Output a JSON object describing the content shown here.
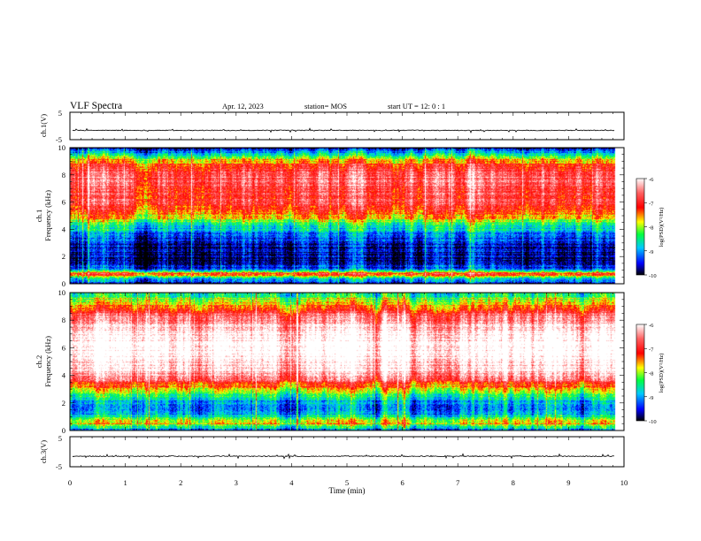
{
  "header": {
    "title": "VLF Spectra",
    "date": "Apr. 12, 2023",
    "station": "station= MOS",
    "start": "start  UT  =    12: 0   : 1"
  },
  "xaxis": {
    "label": "Time  (min)",
    "ticks": [
      "0",
      "1",
      "2",
      "3",
      "4",
      "5",
      "6",
      "7",
      "8",
      "9",
      "10"
    ]
  },
  "chart_data": [
    {
      "type": "line",
      "name_label": "ch.1(V)",
      "ylim": [
        -5,
        5
      ],
      "ytick_labels": [
        "5",
        "-5"
      ],
      "x_range": [
        0,
        9.83
      ],
      "baseline": -1.6,
      "title": "",
      "xlabel": "Time  (min)",
      "ylabel": "ch.1(V)"
    },
    {
      "type": "heatmap",
      "name_label": "ch.1",
      "ylabel": "Frequency  (kHz)",
      "xlabel": "Time  (min)",
      "ylim": [
        0,
        10
      ],
      "xlim": [
        0,
        10
      ],
      "x_range": [
        0,
        9.83
      ],
      "ytick_labels": [
        "0",
        "2",
        "4",
        "6",
        "8",
        "10"
      ],
      "colorbar": {
        "label": "log(PSD)(V²/Hz)",
        "ticks": [
          "-6",
          "-7",
          "-8",
          "-9",
          "-10"
        ],
        "range": [
          -10,
          -6
        ]
      },
      "freq_profile": [
        {
          "f": 0.0,
          "v": -9.6
        },
        {
          "f": 0.4,
          "v": -8.4
        },
        {
          "f": 0.7,
          "v": -7.0
        },
        {
          "f": 1.0,
          "v": -9.0
        },
        {
          "f": 1.5,
          "v": -9.7
        },
        {
          "f": 2.5,
          "v": -9.6
        },
        {
          "f": 3.5,
          "v": -9.3
        },
        {
          "f": 4.2,
          "v": -8.5
        },
        {
          "f": 5.0,
          "v": -7.5
        },
        {
          "f": 6.0,
          "v": -6.8
        },
        {
          "f": 8.0,
          "v": -6.6
        },
        {
          "f": 9.0,
          "v": -7.4
        },
        {
          "f": 9.5,
          "v": -8.4
        },
        {
          "f": 10.0,
          "v": -9.8
        }
      ]
    },
    {
      "type": "heatmap",
      "name_label": "ch.2",
      "ylabel": "Frequency  (kHz)",
      "xlabel": "Time  (min)",
      "ylim": [
        0,
        10
      ],
      "xlim": [
        0,
        10
      ],
      "x_range": [
        0,
        9.83
      ],
      "ytick_labels": [
        "0",
        "2",
        "4",
        "6",
        "8",
        "10"
      ],
      "colorbar": {
        "label": "log(PSD)(V²/Hz)",
        "ticks": [
          "-6",
          "-7",
          "-8",
          "-9",
          "-10"
        ],
        "range": [
          -10,
          -6
        ]
      },
      "freq_profile": [
        {
          "f": 0.0,
          "v": -9.3
        },
        {
          "f": 0.5,
          "v": -7.6
        },
        {
          "f": 1.0,
          "v": -8.8
        },
        {
          "f": 1.6,
          "v": -9.3
        },
        {
          "f": 2.5,
          "v": -8.6
        },
        {
          "f": 3.3,
          "v": -7.4
        },
        {
          "f": 4.0,
          "v": -6.3
        },
        {
          "f": 5.5,
          "v": -5.8
        },
        {
          "f": 7.0,
          "v": -5.9
        },
        {
          "f": 8.5,
          "v": -6.8
        },
        {
          "f": 9.3,
          "v": -7.8
        },
        {
          "f": 10.0,
          "v": -8.6
        }
      ]
    },
    {
      "type": "line",
      "name_label": "ch.3(V)",
      "ylim": [
        -5,
        5
      ],
      "ytick_labels": [
        "5",
        "-5"
      ],
      "x_range": [
        0,
        9.83
      ],
      "baseline": -1.5,
      "title": "",
      "xlabel": "Time  (min)",
      "ylabel": "ch.3(V)"
    }
  ]
}
